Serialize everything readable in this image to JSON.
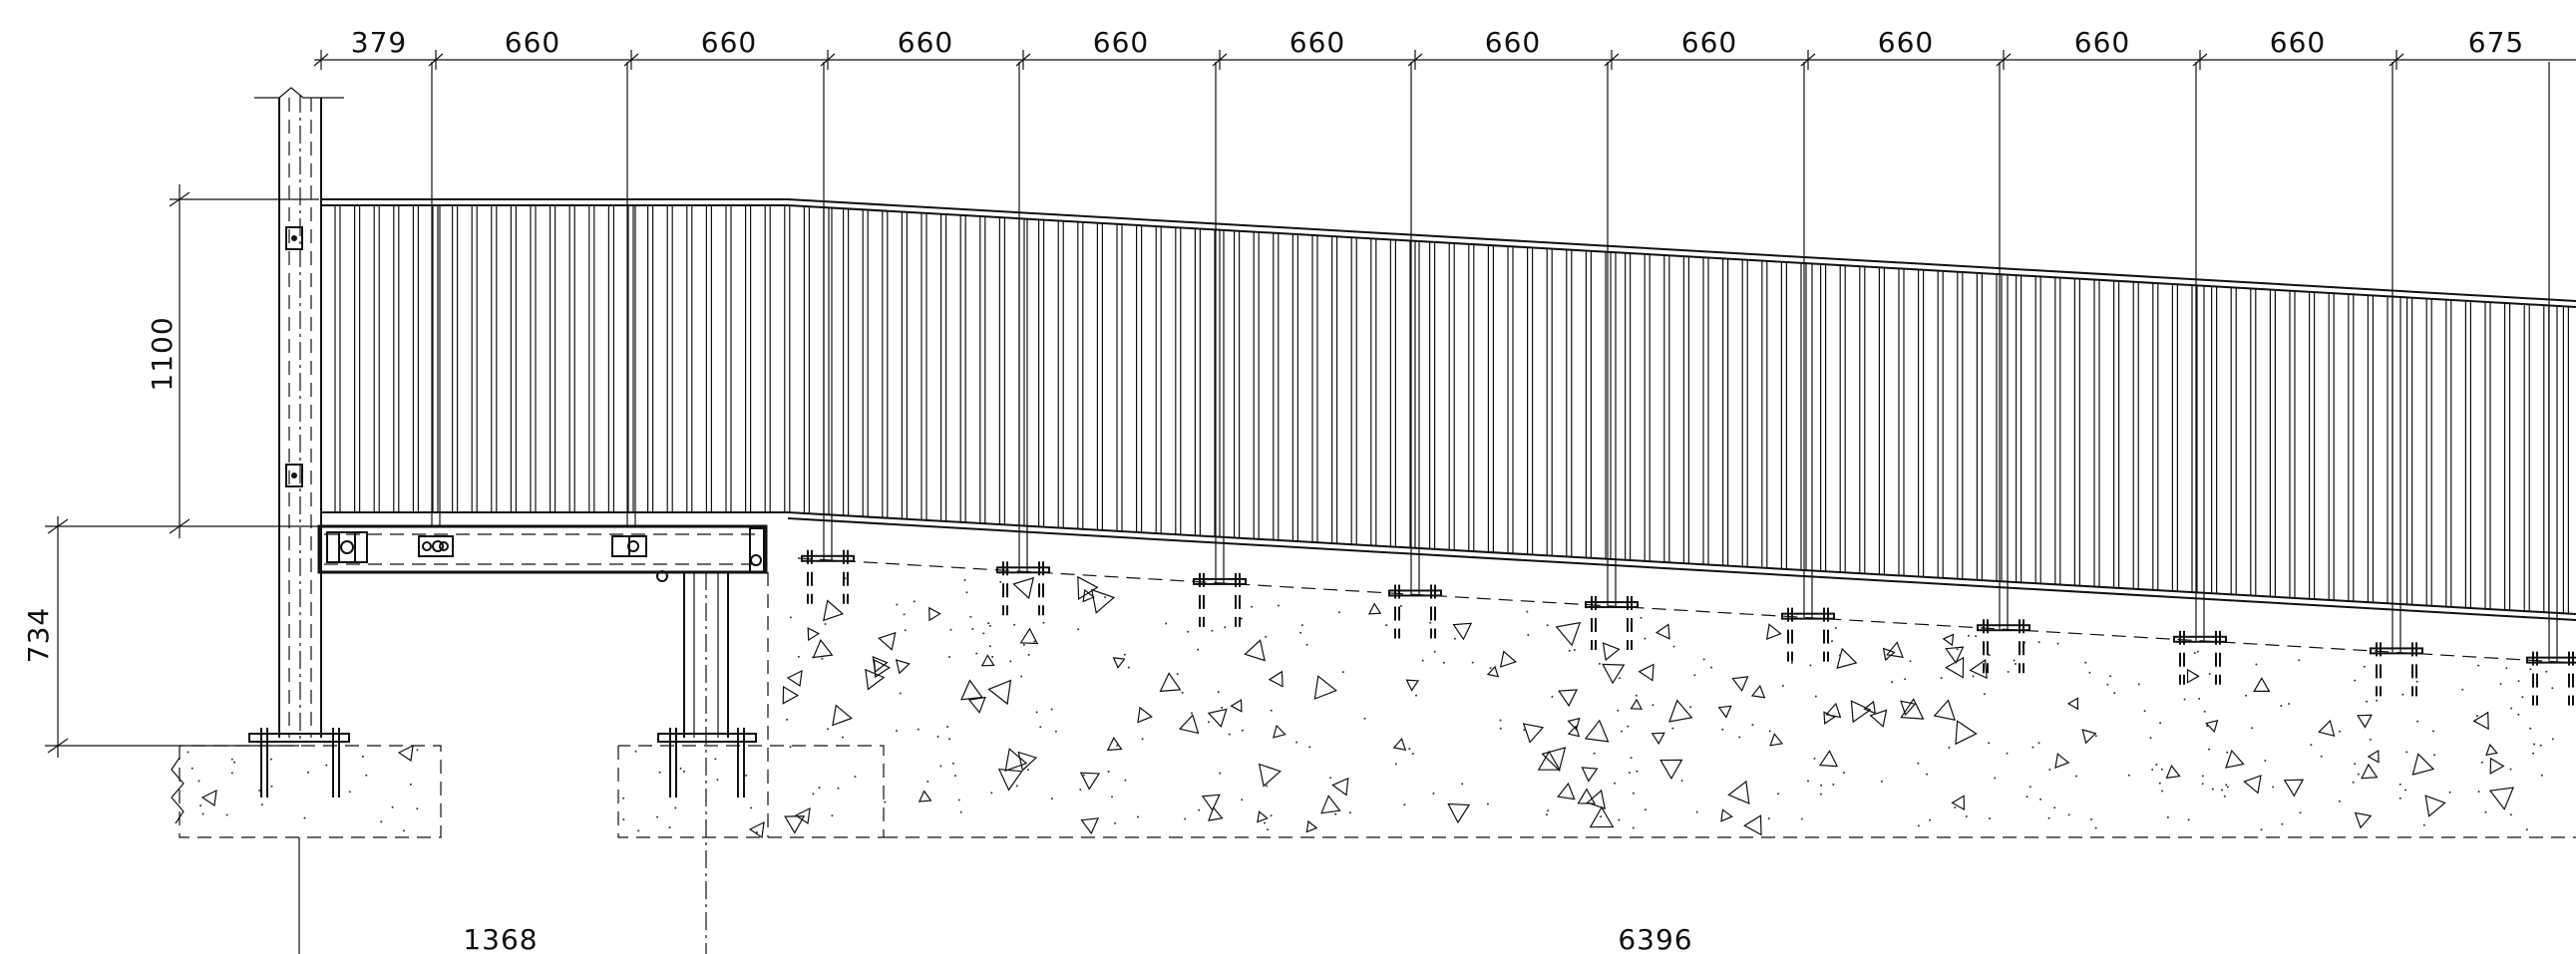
{
  "top_dimensions": [
    "379",
    "660",
    "660",
    "660",
    "660",
    "660",
    "660",
    "660",
    "660",
    "660",
    "660",
    "675"
  ],
  "height_dimensions": {
    "guardrail": "1100",
    "platform": "734"
  },
  "bottom_dimensions": {
    "left_span": "1368",
    "right_span": "6396"
  }
}
